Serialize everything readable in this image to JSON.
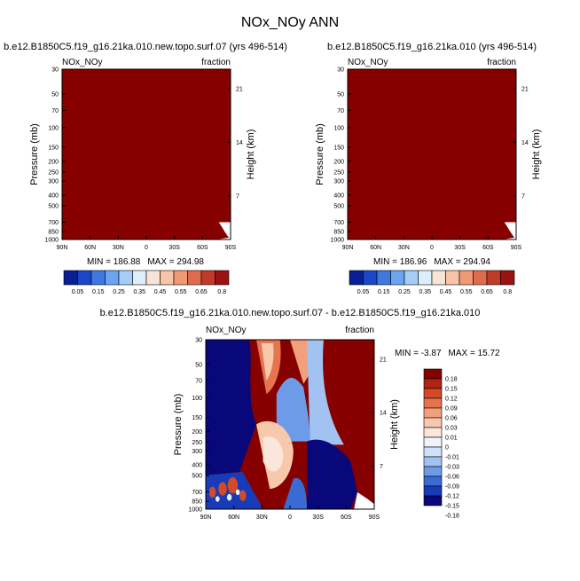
{
  "title": "NOx_NOy ANN",
  "colors": {
    "dark_red": "#870000",
    "border": "#000000",
    "top_palette": [
      "#0a1e96",
      "#1a46c8",
      "#3f78e0",
      "#6ba4f2",
      "#a6cdf8",
      "#dceefc",
      "#f7e4d6",
      "#f8c3a6",
      "#f19875",
      "#e06a4c",
      "#c43a28",
      "#9b1212"
    ],
    "diff_palette": [
      "#08087a",
      "#1a3bb8",
      "#3a6ad4",
      "#6e9be8",
      "#a2c2f2",
      "#cfe1f8",
      "#eef3fc",
      "#fbe6dc",
      "#f8c8ac",
      "#f2a07c",
      "#e6744f",
      "#d24a2a",
      "#b02414",
      "#870000"
    ]
  },
  "chart_data": [
    {
      "type": "heatmap",
      "title": "b.e12.B1850C5.f19_g16.21ka.010.new.topo.surf.07 (yrs 496-514)",
      "left_label": "NOx_NOy",
      "right_label": "fraction",
      "xlabel": "",
      "ylabel": "Pressure (mb)",
      "ylabel_right": "Height (km)",
      "x_ticks": [
        "90N",
        "60N",
        "30N",
        "0",
        "30S",
        "60S",
        "90S"
      ],
      "y_ticks": [
        "30",
        "50",
        "70",
        "100",
        "150",
        "200",
        "250",
        "300",
        "400",
        "500",
        "700",
        "850",
        "1000"
      ],
      "y_ticks_right": [
        "21",
        "14",
        "7"
      ],
      "min_text": "MIN = 186.88",
      "max_text": "MAX = 294.98",
      "min": 186.88,
      "max": 294.98,
      "colorbar_labels": [
        "0.05",
        "0.15",
        "0.25",
        "0.35",
        "0.45",
        "0.55",
        "0.65",
        "0.8"
      ]
    },
    {
      "type": "heatmap",
      "title": "b.e12.B1850C5.f19_g16.21ka.010 (yrs 496-514)",
      "left_label": "NOx_NOy",
      "right_label": "fraction",
      "xlabel": "",
      "ylabel": "Pressure (mb)",
      "ylabel_right": "Height (km)",
      "x_ticks": [
        "90N",
        "60N",
        "30N",
        "0",
        "30S",
        "60S",
        "90S"
      ],
      "y_ticks": [
        "30",
        "50",
        "70",
        "100",
        "150",
        "200",
        "250",
        "300",
        "400",
        "500",
        "700",
        "850",
        "1000"
      ],
      "y_ticks_right": [
        "21",
        "14",
        "7"
      ],
      "min_text": "MIN = 186.96",
      "max_text": "MAX = 294.94",
      "min": 186.96,
      "max": 294.94,
      "colorbar_labels": [
        "0.05",
        "0.15",
        "0.25",
        "0.35",
        "0.45",
        "0.55",
        "0.65",
        "0.8"
      ]
    },
    {
      "type": "heatmap",
      "title": "b.e12.B1850C5.f19_g16.21ka.010.new.topo.surf.07 - b.e12.B1850C5.f19_g16.21ka.010",
      "left_label": "NOx_NOy",
      "right_label": "fraction",
      "xlabel": "",
      "ylabel": "Pressure (mb)",
      "ylabel_right": "Height (km)",
      "x_ticks": [
        "90N",
        "60N",
        "30N",
        "0",
        "30S",
        "60S",
        "90S"
      ],
      "y_ticks": [
        "30",
        "50",
        "70",
        "100",
        "150",
        "200",
        "250",
        "300",
        "400",
        "500",
        "700",
        "850",
        "1000"
      ],
      "y_ticks_right": [
        "21",
        "14",
        "7"
      ],
      "min_text": "MIN =  -3.87",
      "max_text": "MAX =  15.72",
      "min": -3.87,
      "max": 15.72,
      "colorbar_labels": [
        "0.18",
        "0.15",
        "0.12",
        "0.09",
        "0.06",
        "0.03",
        "0.01",
        "0",
        "-0.01",
        "-0.03",
        "-0.06",
        "-0.09",
        "-0.12",
        "-0.15",
        "-0.18"
      ]
    }
  ]
}
